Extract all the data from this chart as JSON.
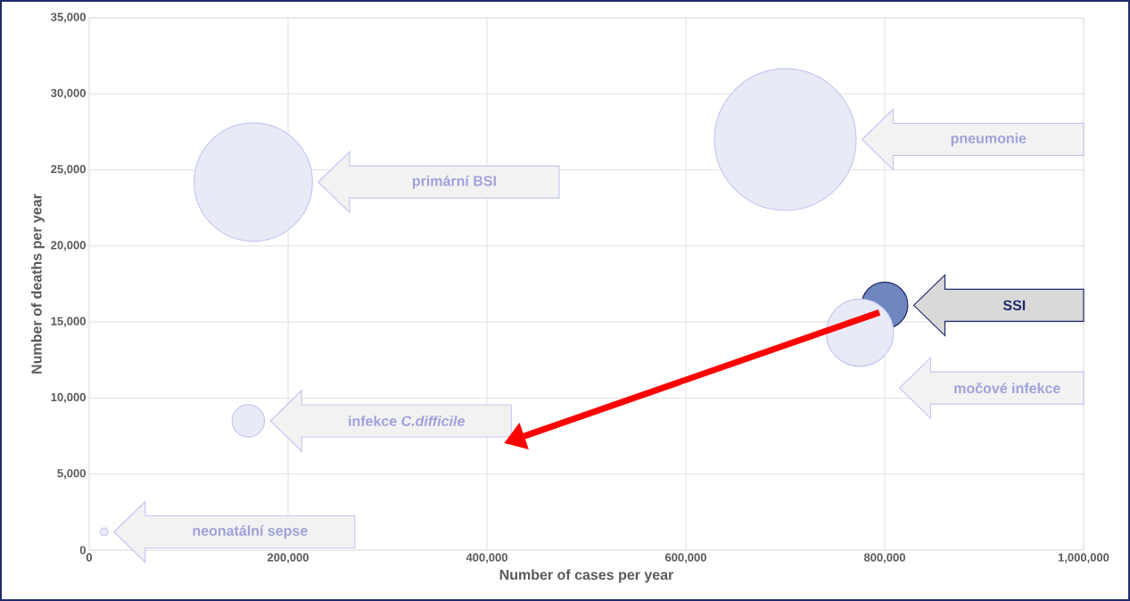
{
  "chart_data": {
    "type": "bubble",
    "xlabel": "Number of cases per year",
    "ylabel": "Number of deaths per year",
    "xlim": [
      0,
      1000000
    ],
    "ylim": [
      0,
      35000
    ],
    "xticks": [
      0,
      {
        "value": 200000,
        "label": "200,000"
      },
      {
        "value": 400000,
        "label": "400,000"
      },
      {
        "value": 600000,
        "label": "600,000"
      },
      {
        "value": 800000,
        "label": "800,000"
      },
      {
        "value": 1000000,
        "label": "1,000,000"
      }
    ],
    "yticks": [
      0,
      {
        "value": 5000,
        "label": "5,000"
      },
      {
        "value": 10000,
        "label": "10,000"
      },
      {
        "value": 15000,
        "label": "15,000"
      },
      {
        "value": 20000,
        "label": "20,000"
      },
      {
        "value": 25000,
        "label": "25,000"
      },
      {
        "value": 30000,
        "label": "30,000"
      },
      {
        "value": 35000,
        "label": "35,000"
      }
    ],
    "grid": true,
    "series": [
      {
        "name": "pneumonie",
        "color": "#e8eaf6",
        "x": [
          700000
        ],
        "values": [
          27000
        ],
        "sizes": [
          1
        ]
      },
      {
        "name": "primární BSI",
        "color": "#e8eaf6",
        "x": [
          165000
        ],
        "values": [
          24200
        ],
        "sizes": [
          0.7
        ]
      },
      {
        "name": "SSI",
        "color": "#6f86bf",
        "x": [
          800000
        ],
        "values": [
          16100
        ],
        "sizes": [
          0.11
        ]
      },
      {
        "name": "močové infekce",
        "color": "#e8eaf6",
        "x": [
          775000
        ],
        "values": [
          14300
        ],
        "sizes": [
          0.23
        ]
      },
      {
        "name": "infekce *C.difficile*",
        "color": "#e8eaf6",
        "x": [
          160000
        ],
        "values": [
          8500
        ],
        "sizes": [
          0.055
        ]
      },
      {
        "name": "neonatální sepse",
        "color": "#e8eaf6",
        "x": [
          15000
        ],
        "values": [
          1200
        ],
        "sizes": [
          0.004
        ]
      }
    ]
  }
}
